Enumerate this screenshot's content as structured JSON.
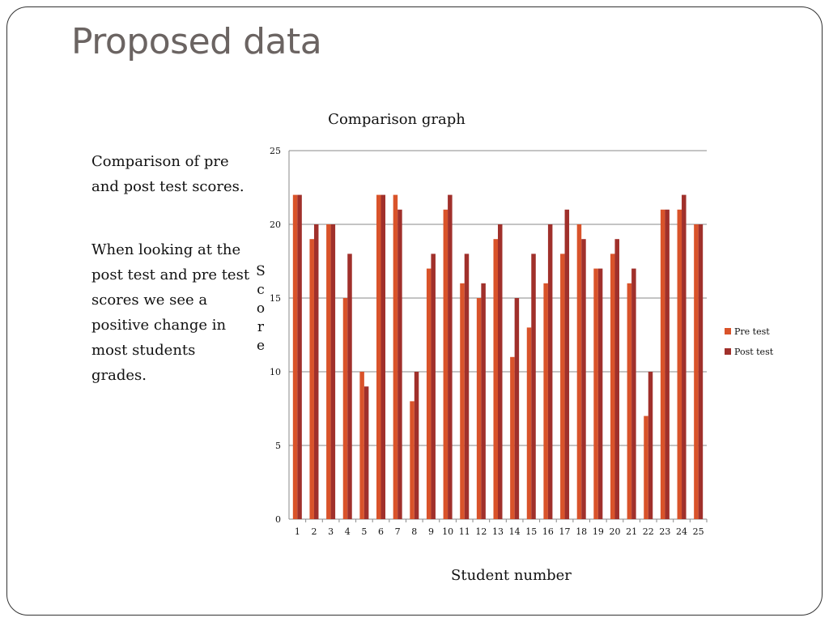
{
  "slide": {
    "title": "Proposed data",
    "paragraph1": "Comparison of pre and post test scores.",
    "paragraph2": "When looking at the post test and pre test scores we see a positive change in most students grades."
  },
  "chart_data": {
    "type": "bar",
    "title": "Comparison graph",
    "xlabel": "Student number",
    "ylabel": "Score",
    "categories": [
      "1",
      "2",
      "3",
      "4",
      "5",
      "6",
      "7",
      "8",
      "9",
      "10",
      "11",
      "12",
      "13",
      "14",
      "15",
      "16",
      "17",
      "18",
      "19",
      "20",
      "21",
      "22",
      "23",
      "24",
      "25"
    ],
    "series": [
      {
        "name": "Pre test",
        "color": "#d9532a",
        "values": [
          22,
          19,
          20,
          15,
          10,
          22,
          22,
          8,
          17,
          21,
          16,
          15,
          19,
          11,
          13,
          16,
          18,
          20,
          17,
          18,
          16,
          7,
          21,
          21,
          20
        ]
      },
      {
        "name": "Post test",
        "color": "#a0302b",
        "values": [
          22,
          20,
          20,
          18,
          9,
          22,
          21,
          10,
          18,
          22,
          18,
          16,
          20,
          15,
          18,
          20,
          21,
          19,
          17,
          19,
          17,
          10,
          21,
          22,
          20
        ]
      }
    ],
    "ylim": [
      0,
      25
    ],
    "yticks": [
      0,
      5,
      10,
      15,
      20,
      25
    ],
    "grid": true,
    "legend_position": "right"
  }
}
